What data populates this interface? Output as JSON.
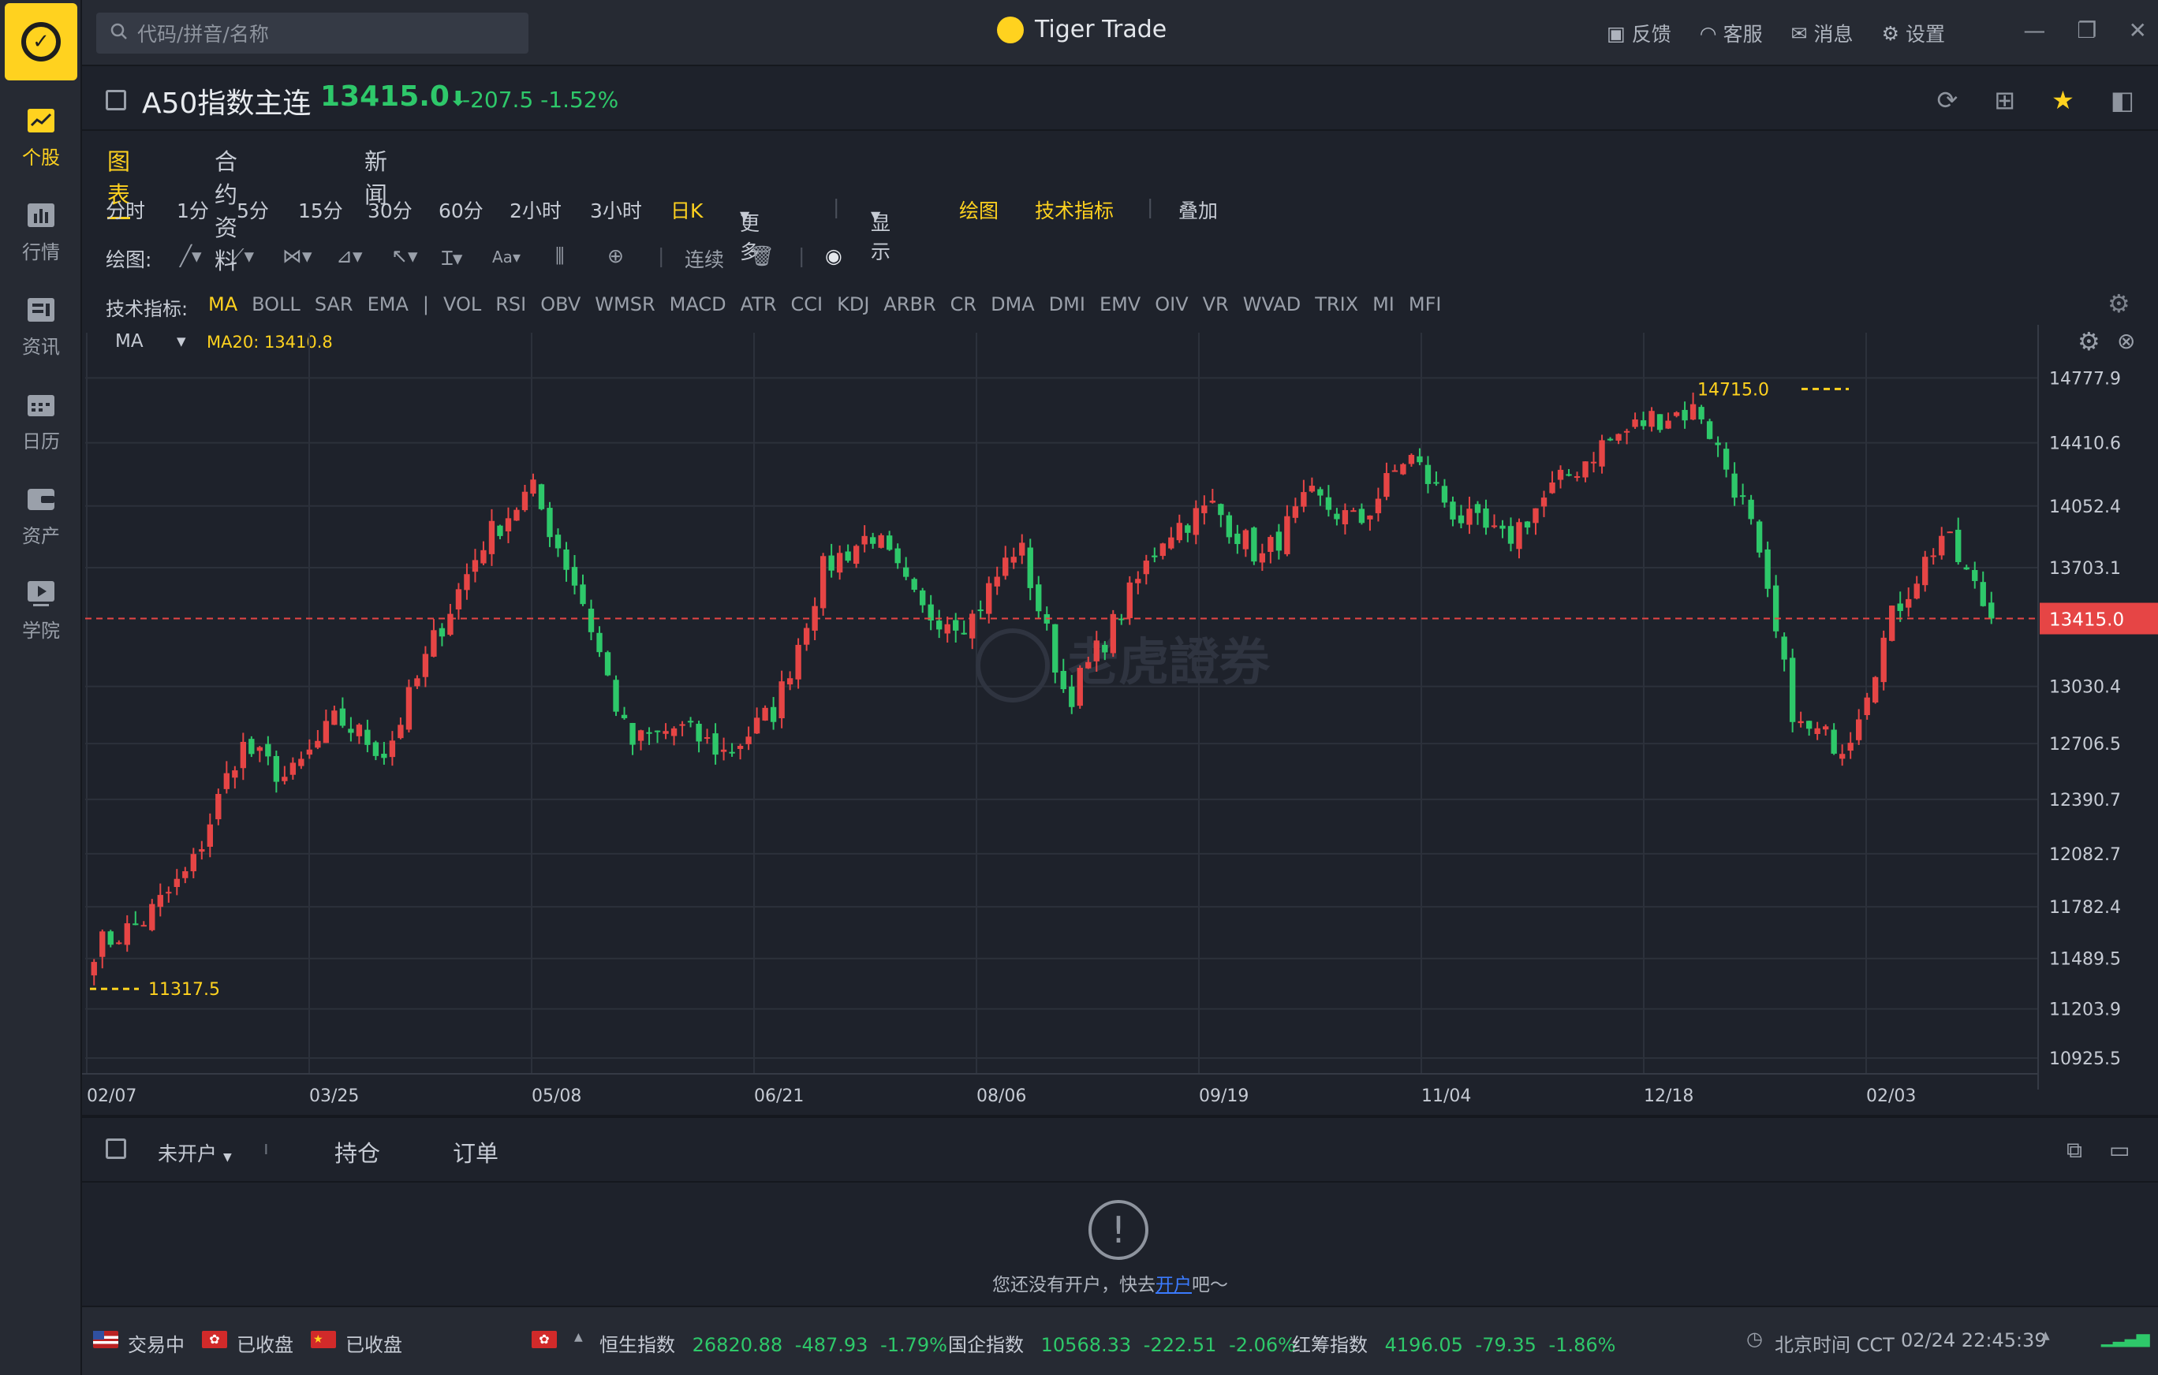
{
  "app": {
    "title": "Tiger Trade"
  },
  "search": {
    "placeholder": "代码/拼音/名称"
  },
  "sidebar": {
    "items": [
      {
        "label": "个股",
        "icon": "stock-chart-icon",
        "active": true
      },
      {
        "label": "行情",
        "icon": "market-icon",
        "active": false
      },
      {
        "label": "资讯",
        "icon": "news-icon",
        "active": false
      },
      {
        "label": "日历",
        "icon": "calendar-icon",
        "active": false
      },
      {
        "label": "资产",
        "icon": "wallet-icon",
        "active": false
      },
      {
        "label": "学院",
        "icon": "play-icon",
        "active": false
      }
    ]
  },
  "top_actions": {
    "feedback": "反馈",
    "service": "客服",
    "messages": "消息",
    "settings": "设置"
  },
  "symbol": {
    "name": "A50指数主连",
    "price": "13415.0",
    "arrow": "⬇",
    "change": "-207.5",
    "change_pct": "-1.52%"
  },
  "tabs": [
    "图表",
    "合约资料",
    "新闻"
  ],
  "periods": [
    "分时",
    "1分",
    "5分",
    "15分",
    "30分",
    "60分",
    "2小时",
    "3小时",
    "日K",
    "更多"
  ],
  "period_active": "日K",
  "view_menu": {
    "display": "显示",
    "draw": "绘图",
    "indicators": "技术指标",
    "overlay": "叠加"
  },
  "draw_tools": {
    "label": "绘图:",
    "continuous": "连续"
  },
  "indicator_row": {
    "label": "技术指标:",
    "items": [
      "MA",
      "BOLL",
      "SAR",
      "EMA",
      "|",
      "VOL",
      "RSI",
      "OBV",
      "WMSR",
      "MACD",
      "ATR",
      "CCI",
      "KDJ",
      "ARBR",
      "CR",
      "DMA",
      "DMI",
      "EMV",
      "OIV",
      "VR",
      "WVAD",
      "TRIX",
      "MI",
      "MFI"
    ]
  },
  "ma_bar": {
    "select": "MA",
    "value": "MA20: 13410.8"
  },
  "watermark": "老虎證券",
  "chart_data": {
    "type": "candlestick",
    "x_ticks": [
      "02/07",
      "03/25",
      "05/08",
      "06/21",
      "08/06",
      "09/19",
      "11/04",
      "12/18",
      "02/03"
    ],
    "y_ticks": [
      "14777.9",
      "14410.6",
      "14052.4",
      "13703.1",
      "13030.4",
      "12706.5",
      "12390.7",
      "12082.7",
      "11782.4",
      "11489.5",
      "11203.9",
      "10925.5"
    ],
    "current_price": "13415.0",
    "high_label": "14715.0",
    "low_label": "11317.5",
    "trend_closes": [
      11550,
      11700,
      12000,
      12700,
      12500,
      12850,
      12650,
      13300,
      13850,
      14150,
      13550,
      12700,
      12800,
      12650,
      12900,
      13700,
      13900,
      13450,
      13400,
      13850,
      12950,
      13400,
      13900,
      14050,
      13750,
      14100,
      13950,
      14350,
      14000,
      13850,
      14150,
      14400,
      14550,
      14600,
      14000,
      12800,
      12700,
      13450,
      13900,
      13420
    ]
  },
  "bottom": {
    "account": "未开户",
    "tab_positions": "持仓",
    "tab_orders": "订单",
    "empty_msg_prefix": "您还没有开户，快去",
    "empty_link": "开户",
    "empty_msg_suffix": "吧～"
  },
  "status": {
    "us": "交易中",
    "hk": "已收盘",
    "cn": "已收盘",
    "indices": [
      {
        "name": "恒生指数",
        "value": "26820.88",
        "chg": "-487.93",
        "pct": "-1.79%"
      },
      {
        "name": "国企指数",
        "value": "10568.33",
        "chg": "-222.51",
        "pct": "-2.06%"
      },
      {
        "name": "红筹指数",
        "value": "4196.05",
        "chg": "-79.35",
        "pct": "-1.86%"
      }
    ],
    "clock_label": "北京时间 CCT",
    "clock_time": "02/24 22:45:39"
  },
  "colors": {
    "up": "#e64545",
    "down": "#2ec86a",
    "accent": "#ffd21f",
    "price_line": "#e64545"
  }
}
